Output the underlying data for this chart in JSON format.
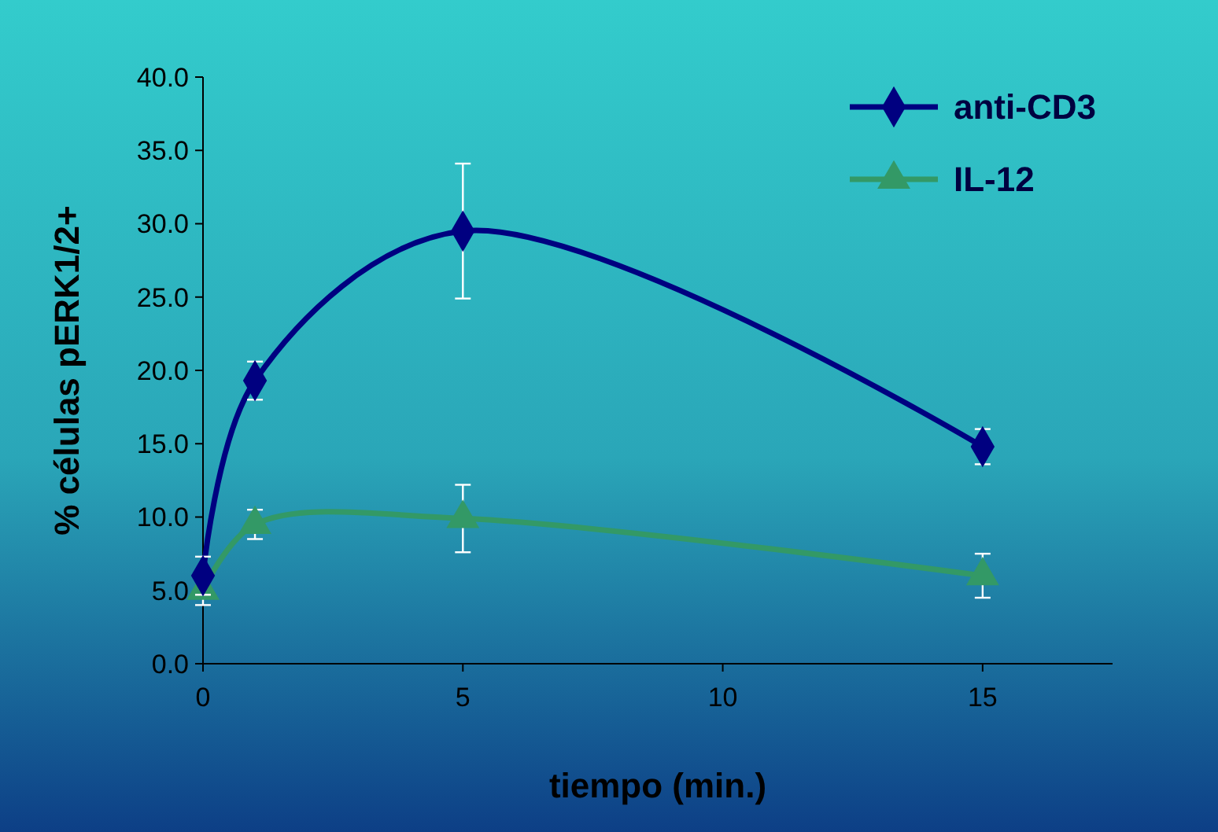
{
  "chart_data": {
    "type": "line",
    "xlabel": "tiempo (min.)",
    "ylabel": "% células pERK1/2+",
    "x": [
      0,
      1,
      5,
      15
    ],
    "xlim": [
      0,
      17.5
    ],
    "xticks": [
      0,
      5,
      10,
      15
    ],
    "ylim": [
      0,
      40
    ],
    "yticks": [
      {
        "value": 0,
        "label": "0.0"
      },
      {
        "value": 5,
        "label": "5.0"
      },
      {
        "value": 10,
        "label": "10.0"
      },
      {
        "value": 15,
        "label": "15.0"
      },
      {
        "value": 20,
        "label": "20.0"
      },
      {
        "value": 25,
        "label": "25.0"
      },
      {
        "value": 30,
        "label": "30.0"
      },
      {
        "value": 35,
        "label": "35.0"
      },
      {
        "value": 40,
        "label": "40.0"
      }
    ],
    "grid": false,
    "legend": "top right",
    "series": [
      {
        "name": "anti-CD3",
        "color": "#000080",
        "marker": "diamond",
        "values": [
          6.0,
          19.3,
          29.5,
          14.8
        ],
        "errors": [
          1.3,
          1.3,
          4.6,
          1.2
        ]
      },
      {
        "name": "IL-12",
        "color": "#339966",
        "marker": "triangle",
        "values": [
          5.0,
          9.5,
          9.9,
          6.0
        ],
        "errors": [
          1.0,
          1.0,
          2.3,
          1.5
        ]
      }
    ]
  }
}
